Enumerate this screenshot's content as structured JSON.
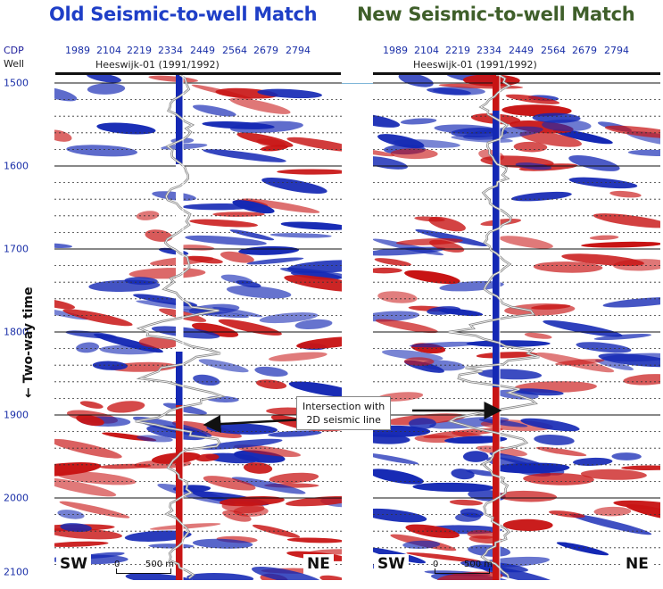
{
  "titles": {
    "old": "Old Seismic-to-well Match",
    "new": "New Seismic-to-well Match"
  },
  "labels": {
    "cdp": "CDP",
    "well": "Well",
    "two_way_time": "← Two-way time"
  },
  "cdp_ticks": [
    "1989",
    "2104",
    "2219",
    "2334",
    "2449",
    "2564",
    "2679",
    "2794"
  ],
  "well_name": "Heeswijk-01 (1991/1992)",
  "time_ticks": [
    "1500",
    "1600",
    "1700",
    "1800",
    "1900",
    "2000",
    "2100"
  ],
  "corners": {
    "left": "SW",
    "right": "NE"
  },
  "scale": {
    "zero": "0",
    "distance": "500 m"
  },
  "callout": {
    "line1": "Intersection with",
    "line2": "2D seismic line"
  },
  "colors": {
    "old_title": "#1f3fc7",
    "new_title": "#3f5f2a",
    "positive": "#c81414",
    "negative": "#1428b4",
    "tick_text": "#1a2fa8"
  }
}
